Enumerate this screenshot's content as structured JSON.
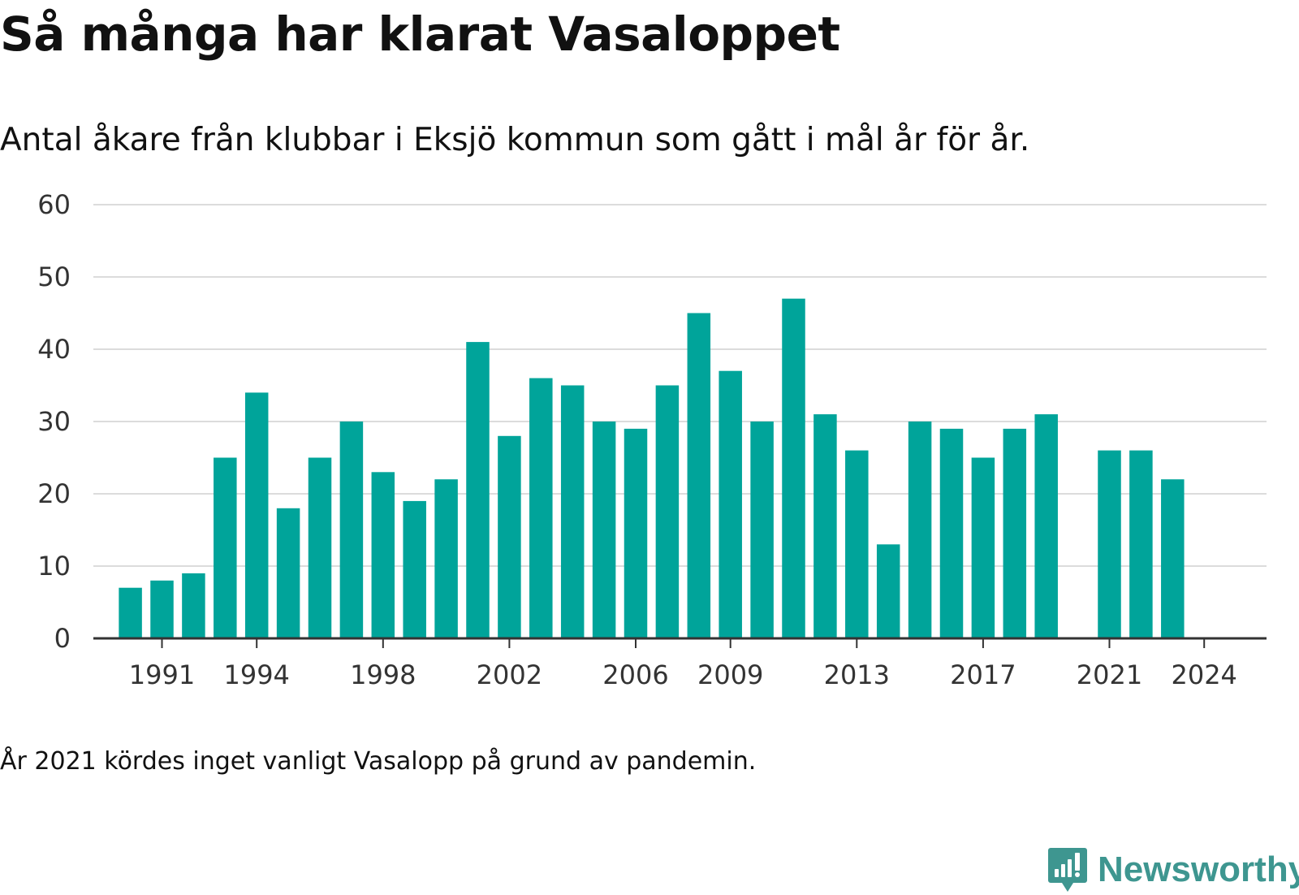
{
  "title": "Så många har klarat Vasaloppet",
  "subtitle": "Antal åkare från klubbar i Eksjö kommun som gått i mål år för år.",
  "note": "År 2021 kördes inget vanligt Vasalopp på grund av pandemin.",
  "brand": {
    "name": "Newsworthy",
    "icon": "newsworthy-logo-icon",
    "color": "#3e9690"
  },
  "chart_data": {
    "type": "bar",
    "title": "Så många har klarat Vasaloppet",
    "subtitle": "Antal åkare från klubbar i Eksjö kommun som gått i mål år för år.",
    "xlabel": "",
    "ylabel": "",
    "ylim": [
      0,
      60
    ],
    "y_ticks": [
      0,
      10,
      20,
      30,
      40,
      50,
      60
    ],
    "x_tick_labels": [
      1991,
      1994,
      1998,
      2002,
      2006,
      2009,
      2013,
      2017,
      2021,
      2024
    ],
    "grid": true,
    "bar_color": "#00a49a",
    "categories": [
      1990,
      1991,
      1992,
      1993,
      1994,
      1995,
      1996,
      1997,
      1998,
      1999,
      2000,
      2001,
      2002,
      2003,
      2004,
      2005,
      2006,
      2007,
      2008,
      2009,
      2010,
      2011,
      2012,
      2013,
      2014,
      2015,
      2016,
      2017,
      2018,
      2019,
      2020,
      2021,
      2022,
      2023,
      2024
    ],
    "values": [
      7,
      8,
      9,
      25,
      34,
      18,
      25,
      30,
      23,
      19,
      22,
      41,
      28,
      36,
      35,
      30,
      29,
      35,
      45,
      37,
      30,
      47,
      31,
      26,
      13,
      30,
      29,
      25,
      29,
      31,
      null,
      26,
      26,
      22,
      0
    ]
  }
}
